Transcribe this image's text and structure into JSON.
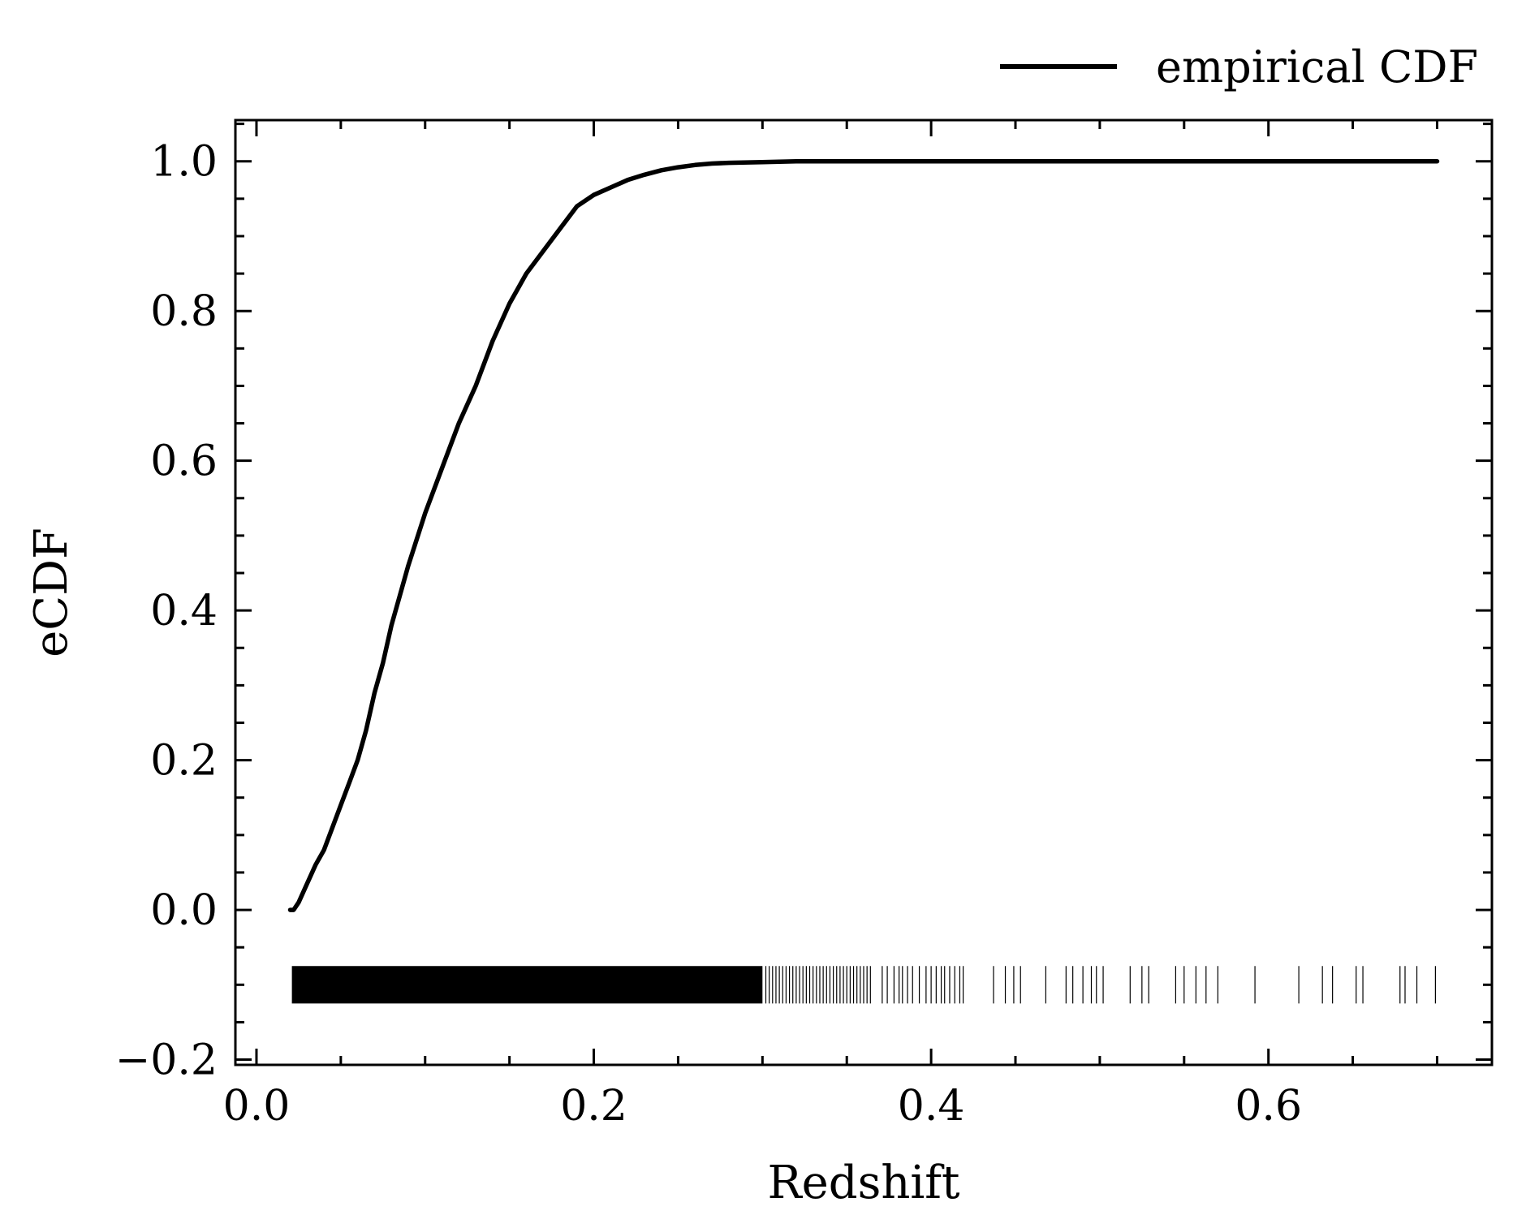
{
  "chart_data": {
    "type": "line",
    "title": "",
    "xlabel": "Redshift",
    "ylabel": "eCDF",
    "xlim": [
      -0.0125,
      0.7325
    ],
    "ylim": [
      -0.207,
      1.055
    ],
    "x_ticks": [
      0.0,
      0.2,
      0.4,
      0.6
    ],
    "x_tick_labels": [
      "0.0",
      "0.2",
      "0.4",
      "0.6"
    ],
    "x_minor_step": 0.05,
    "y_ticks": [
      -0.2,
      0.0,
      0.2,
      0.4,
      0.6,
      0.8,
      1.0
    ],
    "y_tick_labels": [
      "−0.2",
      "0.0",
      "0.2",
      "0.4",
      "0.6",
      "0.8",
      "1.0"
    ],
    "y_minor_step": 0.05,
    "grid": false,
    "legend_placement": "top-right-outside",
    "series": [
      {
        "name": "empirical CDF",
        "color": "#000000",
        "x": [
          0.02,
          0.022,
          0.025,
          0.03,
          0.035,
          0.04,
          0.045,
          0.05,
          0.055,
          0.06,
          0.065,
          0.07,
          0.075,
          0.08,
          0.085,
          0.09,
          0.1,
          0.11,
          0.12,
          0.13,
          0.14,
          0.15,
          0.16,
          0.17,
          0.18,
          0.19,
          0.2,
          0.21,
          0.22,
          0.23,
          0.24,
          0.25,
          0.26,
          0.27,
          0.28,
          0.3,
          0.32,
          0.35,
          0.4,
          0.5,
          0.6,
          0.7
        ],
        "y": [
          0.0,
          0.0,
          0.01,
          0.035,
          0.06,
          0.08,
          0.11,
          0.14,
          0.17,
          0.2,
          0.24,
          0.29,
          0.33,
          0.38,
          0.42,
          0.46,
          0.53,
          0.59,
          0.65,
          0.7,
          0.76,
          0.81,
          0.85,
          0.88,
          0.91,
          0.94,
          0.955,
          0.965,
          0.975,
          0.982,
          0.988,
          0.992,
          0.995,
          0.997,
          0.998,
          0.999,
          1.0,
          1.0,
          1.0,
          1.0,
          1.0,
          1.0
        ]
      }
    ],
    "rug": {
      "color": "#000000",
      "y_range": [
        -0.125,
        -0.075
      ],
      "dense_range": [
        0.021,
        0.3
      ],
      "x": [
        0.302,
        0.304,
        0.306,
        0.308,
        0.31,
        0.312,
        0.314,
        0.316,
        0.318,
        0.32,
        0.322,
        0.324,
        0.326,
        0.328,
        0.33,
        0.332,
        0.334,
        0.336,
        0.338,
        0.34,
        0.342,
        0.344,
        0.346,
        0.348,
        0.35,
        0.352,
        0.354,
        0.356,
        0.358,
        0.36,
        0.362,
        0.364,
        0.371,
        0.374,
        0.378,
        0.381,
        0.383,
        0.386,
        0.389,
        0.393,
        0.397,
        0.4,
        0.403,
        0.406,
        0.408,
        0.411,
        0.414,
        0.417,
        0.419,
        0.437,
        0.444,
        0.449,
        0.453,
        0.468,
        0.48,
        0.484,
        0.49,
        0.495,
        0.498,
        0.502,
        0.518,
        0.525,
        0.529,
        0.545,
        0.55,
        0.557,
        0.563,
        0.57,
        0.592,
        0.618,
        0.632,
        0.638,
        0.652,
        0.656,
        0.678,
        0.681,
        0.688,
        0.699
      ]
    }
  }
}
